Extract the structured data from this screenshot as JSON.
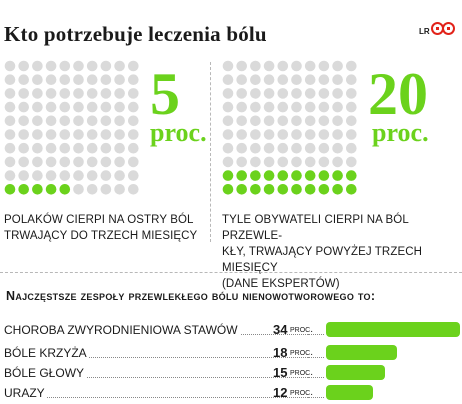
{
  "title": "Kto potrzebuje leczenia bólu",
  "credit": "LR",
  "colors": {
    "accent": "#6bd21c",
    "dot_grey": "#dadada"
  },
  "panel_left": {
    "value": "5",
    "unit": "proc.",
    "note_line1": "Polaków cierpi na ostry ból",
    "note_line2": "trwający do trzech miesięcy",
    "grid_total": 100,
    "highlighted": 5
  },
  "panel_right": {
    "value": "20",
    "unit": "proc.",
    "note_line1": "Tyle obywateli cierpi na ból przewle-",
    "note_line2": "kły, trwający powyżej trzech miesięcy",
    "note_line3": "(dane ekspertów)",
    "grid_total": 100,
    "highlighted": 20
  },
  "chart_data": {
    "type": "bar",
    "title": "Najczęstsze zespoły przewlekłego bólu nienowotworowego to:",
    "categories": [
      "Choroba zwyrodnieniowa stawów",
      "Bóle krzyża",
      "Bóle głowy",
      "Urazy"
    ],
    "values": [
      34,
      18,
      15,
      12
    ],
    "unit": "proc.",
    "orientation": "horizontal",
    "xlim": [
      0,
      34
    ]
  }
}
